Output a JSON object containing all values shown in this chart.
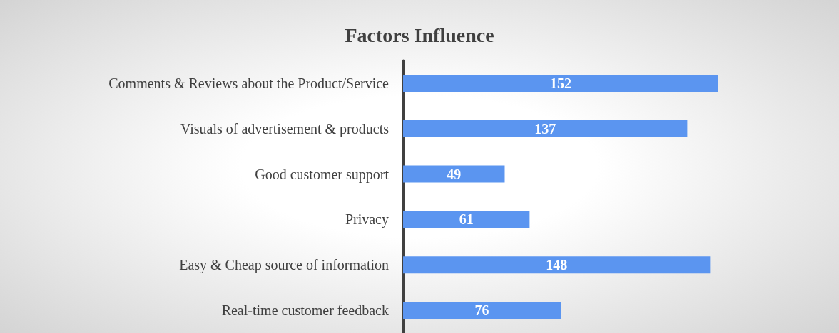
{
  "chart_data": {
    "type": "bar",
    "orientation": "horizontal",
    "title": "Factors Influence",
    "categories": [
      "Comments & Reviews about the Product/Service",
      "Visuals of advertisement & products",
      "Good customer support",
      "Privacy",
      "Easy & Cheap source of information",
      "Real-time customer feedback"
    ],
    "values": [
      152,
      137,
      49,
      61,
      148,
      76
    ],
    "color": "#5b95f0",
    "data_labels": true
  }
}
